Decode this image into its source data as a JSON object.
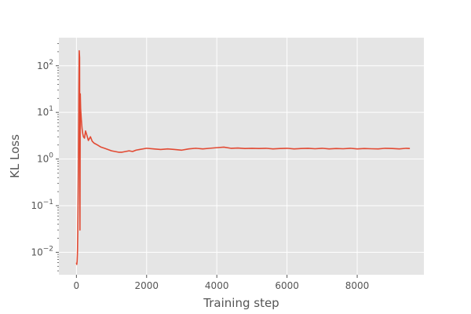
{
  "chart_data": {
    "type": "line",
    "title": "",
    "xlabel": "Training step",
    "ylabel": "KL Loss",
    "xlim": [
      -500,
      9900
    ],
    "ylim": [
      0.0033,
      400
    ],
    "yscale": "log",
    "grid": true,
    "legend": "none",
    "xticks": [
      0,
      2000,
      4000,
      6000,
      8000
    ],
    "xtick_labels": [
      "0",
      "2000",
      "4000",
      "6000",
      "8000"
    ],
    "yticks": [
      0.01,
      0.1,
      1,
      10,
      100
    ],
    "ytick_labels": [
      {
        "base": "10",
        "exp": "−2"
      },
      {
        "base": "10",
        "exp": "−1"
      },
      {
        "base": "10",
        "exp": "0"
      },
      {
        "base": "10",
        "exp": "1"
      },
      {
        "base": "10",
        "exp": "2"
      }
    ],
    "series": [
      {
        "color": "#E24A33",
        "x": [
          0,
          10,
          20,
          30,
          40,
          50,
          60,
          70,
          80,
          90,
          100,
          110,
          120,
          140,
          160,
          180,
          200,
          230,
          260,
          300,
          340,
          400,
          450,
          500,
          600,
          700,
          800,
          900,
          1000,
          1100,
          1200,
          1300,
          1400,
          1500,
          1600,
          1700,
          1800,
          2000,
          2200,
          2400,
          2600,
          2800,
          3000,
          3200,
          3400,
          3600,
          3800,
          4000,
          4200,
          4400,
          4600,
          4800,
          5000,
          5200,
          5400,
          5600,
          5800,
          6000,
          6200,
          6400,
          6600,
          6800,
          7000,
          7200,
          7400,
          7600,
          7800,
          8000,
          8200,
          8400,
          8600,
          8800,
          9000,
          9200,
          9400,
          9500
        ],
        "y": [
          0.006,
          0.0055,
          0.0065,
          0.01,
          0.03,
          0.2,
          1.5,
          30,
          210,
          150,
          0.03,
          25,
          12,
          7,
          4.5,
          3.5,
          3,
          2.8,
          4,
          3.2,
          2.5,
          3,
          2.4,
          2.2,
          2,
          1.8,
          1.7,
          1.6,
          1.5,
          1.45,
          1.4,
          1.4,
          1.45,
          1.5,
          1.45,
          1.55,
          1.6,
          1.7,
          1.65,
          1.6,
          1.65,
          1.6,
          1.55,
          1.65,
          1.7,
          1.65,
          1.7,
          1.75,
          1.8,
          1.7,
          1.72,
          1.68,
          1.7,
          1.68,
          1.7,
          1.65,
          1.68,
          1.7,
          1.65,
          1.68,
          1.7,
          1.66,
          1.7,
          1.65,
          1.68,
          1.66,
          1.7,
          1.65,
          1.68,
          1.66,
          1.65,
          1.7,
          1.68,
          1.65,
          1.7,
          1.68
        ]
      }
    ]
  }
}
